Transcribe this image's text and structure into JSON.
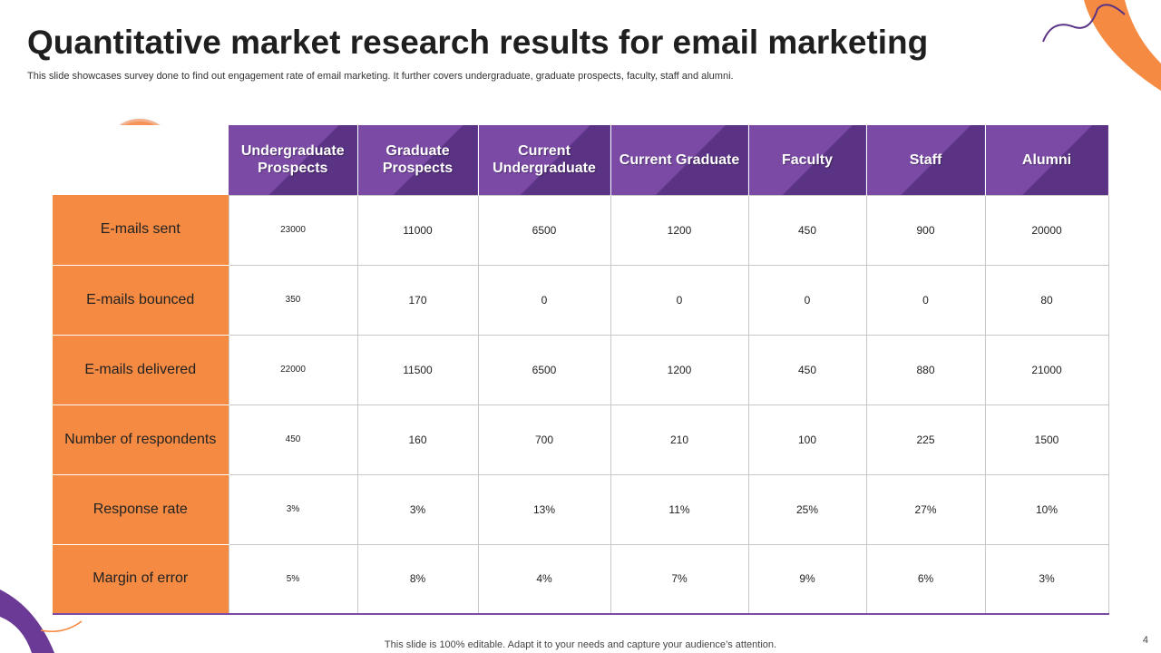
{
  "title": "Quantitative market research results for email marketing",
  "subtitle": "This slide showcases survey done to find out engagement rate of email marketing. It further covers undergraduate, graduate prospects, faculty, staff and alumni.",
  "colors": {
    "accent_orange": "#f58a42",
    "accent_purple": "#7a4aa5"
  },
  "icon": "envelope-icon",
  "table": {
    "columns": [
      "Undergraduate Prospects",
      "Graduate Prospects",
      "Current Undergraduate",
      "Current Graduate",
      "Faculty",
      "Staff",
      "Alumni"
    ],
    "rows": [
      {
        "label": "E-mails sent",
        "values": [
          "23000",
          "11000",
          "6500",
          "1200",
          "450",
          "900",
          "20000"
        ]
      },
      {
        "label": "E-mails bounced",
        "values": [
          "350",
          "170",
          "0",
          "0",
          "0",
          "0",
          "80"
        ]
      },
      {
        "label": "E-mails delivered",
        "values": [
          "22000",
          "11500",
          "6500",
          "1200",
          "450",
          "880",
          "21000"
        ]
      },
      {
        "label": "Number of respondents",
        "values": [
          "450",
          "160",
          "700",
          "210",
          "100",
          "225",
          "1500"
        ]
      },
      {
        "label": "Response rate",
        "values": [
          "3%",
          "3%",
          "13%",
          "11%",
          "25%",
          "27%",
          "10%"
        ]
      },
      {
        "label": "Margin of error",
        "values": [
          "5%",
          "8%",
          "4%",
          "7%",
          "9%",
          "6%",
          "3%"
        ]
      }
    ]
  },
  "footer": "This slide is 100% editable. Adapt it to your needs and capture your audience’s attention.",
  "page_number": "4"
}
